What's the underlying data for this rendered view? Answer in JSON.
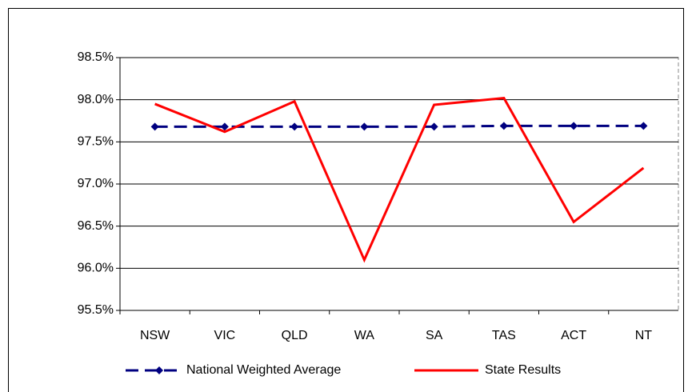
{
  "chart_data": {
    "type": "line",
    "categories": [
      "NSW",
      "VIC",
      "QLD",
      "WA",
      "SA",
      "TAS",
      "ACT",
      "NT"
    ],
    "series": [
      {
        "name": "National Weighted Average",
        "color": "#000080",
        "dashed": true,
        "marker": "diamond",
        "values": [
          97.68,
          97.68,
          97.68,
          97.68,
          97.68,
          97.69,
          97.69,
          97.69
        ]
      },
      {
        "name": "State Results",
        "color": "#ff0000",
        "dashed": false,
        "marker": null,
        "values": [
          97.95,
          97.62,
          97.98,
          96.1,
          97.94,
          98.02,
          96.55,
          97.19
        ]
      }
    ],
    "ylim": [
      95.5,
      98.5
    ],
    "yticks": [
      {
        "value": 95.5,
        "label": "95.5%"
      },
      {
        "value": 96.0,
        "label": "96.0%"
      },
      {
        "value": 96.5,
        "label": "96.5%"
      },
      {
        "value": 97.0,
        "label": "97.0%"
      },
      {
        "value": 97.5,
        "label": "97.5%"
      },
      {
        "value": 98.0,
        "label": "98.0%"
      },
      {
        "value": 98.5,
        "label": "98.5%"
      }
    ],
    "grid": true,
    "legend": "bottom"
  }
}
